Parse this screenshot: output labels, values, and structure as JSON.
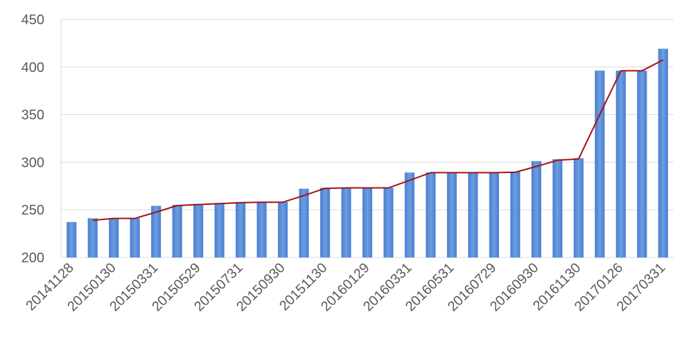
{
  "chart_data": {
    "type": "bar",
    "categories": [
      "20141128",
      null,
      "20150130",
      null,
      "20150331",
      null,
      "20150529",
      null,
      "20150731",
      null,
      "20150930",
      null,
      "20151130",
      null,
      "20160129",
      null,
      "20160331",
      null,
      "20160531",
      null,
      "20160729",
      null,
      "20160930",
      null,
      "20161130",
      null,
      "20170126",
      null,
      "20170331"
    ],
    "series": [
      {
        "type": "bar",
        "color": "#5b8fd6",
        "values": [
          237,
          241,
          241,
          241,
          254,
          255,
          256,
          257,
          258,
          258,
          258,
          272,
          273,
          273,
          273,
          273,
          289,
          289,
          289,
          289,
          289,
          290,
          301,
          303,
          304,
          396,
          396,
          396,
          419
        ]
      },
      {
        "type": "line",
        "color": "#a50f15",
        "values": [
          null,
          239,
          241,
          241,
          247.5,
          254.5,
          255.5,
          256.5,
          257.5,
          258,
          258,
          265,
          272.5,
          273,
          273,
          273,
          281,
          289,
          289,
          289,
          289,
          289.5,
          295.5,
          302,
          303.5,
          350,
          396,
          396,
          407.5
        ]
      }
    ],
    "ylim": [
      200,
      450
    ],
    "yticks": [
      200,
      250,
      300,
      350,
      400,
      450
    ],
    "grid": true
  }
}
